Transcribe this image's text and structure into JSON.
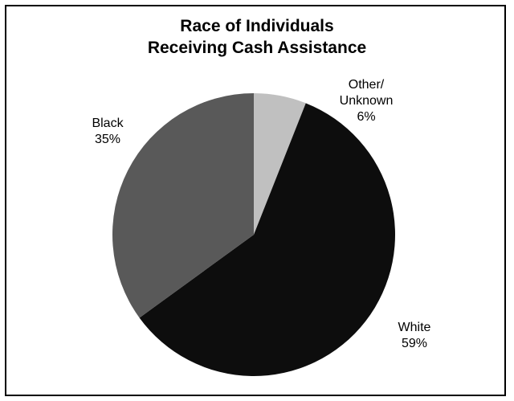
{
  "chart_data": {
    "type": "pie",
    "title_lines": [
      "Race of Individuals",
      "Receiving Cash Assistance"
    ],
    "slices": [
      {
        "label_lines": [
          "Other/",
          "Unknown"
        ],
        "value": 6,
        "value_label": "6%",
        "color": "#c0c0c0"
      },
      {
        "label_lines": [
          "White"
        ],
        "value": 59,
        "value_label": "59%",
        "color": "#0d0d0d"
      },
      {
        "label_lines": [
          "Black"
        ],
        "value": 35,
        "value_label": "35%",
        "color": "#595959"
      }
    ],
    "start": "12 o'clock",
    "direction": "clockwise",
    "legend": "none",
    "slice_border": "none"
  }
}
